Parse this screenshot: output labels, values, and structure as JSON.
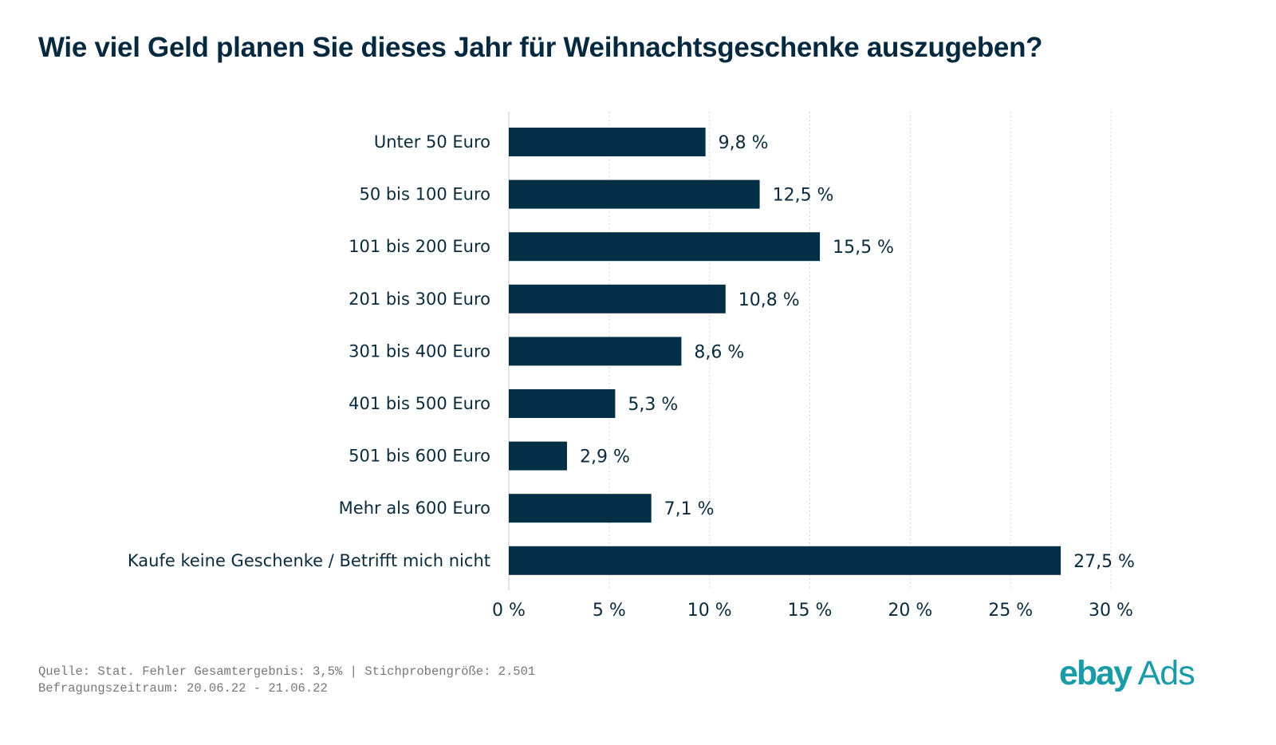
{
  "chart_data": {
    "type": "bar",
    "orientation": "horizontal",
    "title": "Wie viel Geld planen Sie dieses Jahr für Weihnachtsgeschenke auszugeben?",
    "categories": [
      "Unter 50 Euro",
      "50 bis 100 Euro",
      "101 bis 200 Euro",
      "201 bis 300 Euro",
      "301 bis 400 Euro",
      "401 bis 500 Euro",
      "501 bis 600 Euro",
      "Mehr als 600 Euro",
      "Kaufe keine Geschenke / Betrifft mich nicht"
    ],
    "values": [
      9.8,
      12.5,
      15.5,
      10.8,
      8.6,
      5.3,
      2.9,
      7.1,
      27.5
    ],
    "value_labels": [
      "9,8 %",
      "12,5 %",
      "15,5 %",
      "10,8 %",
      "8,6 %",
      "5,3 %",
      "2,9 %",
      "7,1 %",
      "27,5 %"
    ],
    "xlabel": "",
    "ylabel": "",
    "xlim": [
      0,
      30
    ],
    "xticks": [
      0,
      5,
      10,
      15,
      20,
      25,
      30
    ],
    "xtick_labels": [
      "0 %",
      "5 %",
      "10 %",
      "15 %",
      "20 %",
      "25 %",
      "30 %"
    ],
    "grid": "vertical dotted",
    "legend": "none",
    "bar_color": "#032f46"
  },
  "footer": {
    "source_line1": "Quelle: Stat. Fehler Gesamtergebnis: 3,5% | Stichprobengröße: 2.501",
    "source_line2": "Befragungszeitraum: 20.06.22 - 21.06.22"
  },
  "logo": {
    "brand": "ebay",
    "product": "Ads",
    "color": "#1a9ba8"
  }
}
